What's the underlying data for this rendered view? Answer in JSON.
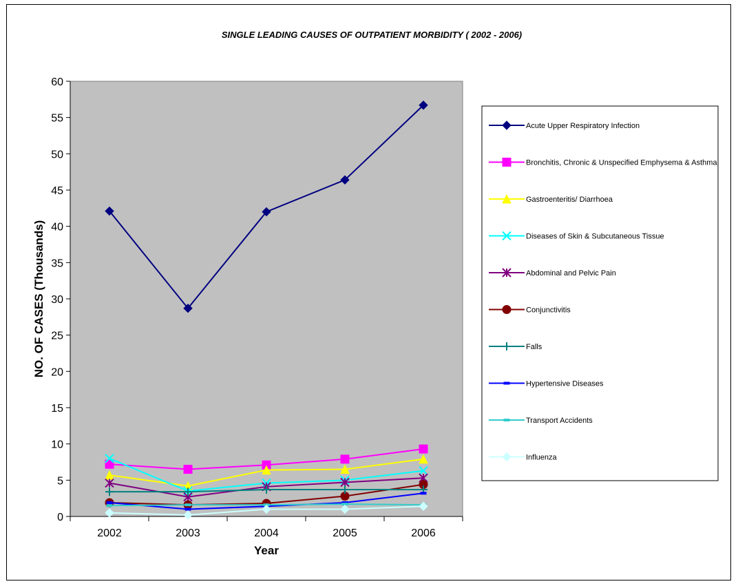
{
  "chart_data": {
    "type": "line",
    "title": "SINGLE LEADING CAUSES OF OUTPATIENT MORBIDITY ( 2002 - 2006)",
    "xlabel": "Year",
    "ylabel": "NO. OF CASES (Thousands)",
    "categories": [
      "2002",
      "2003",
      "2004",
      "2005",
      "2006"
    ],
    "ylim": [
      0,
      60
    ],
    "yticks": [
      0,
      5,
      10,
      15,
      20,
      25,
      30,
      35,
      40,
      45,
      50,
      55,
      60
    ],
    "grid": false,
    "plot_background": "#C0C0C0",
    "legend_position": "right",
    "series": [
      {
        "name": "Acute Upper Respiratory Infection",
        "color": "#000080",
        "marker": "diamond",
        "values": [
          42.1,
          28.7,
          42.0,
          46.4,
          56.7
        ]
      },
      {
        "name": "Bronchitis, Chronic & Unspecified Emphysema & Asthma",
        "color": "#FF00FF",
        "marker": "square",
        "values": [
          7.2,
          6.5,
          7.1,
          7.9,
          9.3
        ]
      },
      {
        "name": "Gastroenteritis/ Diarrhoea",
        "color": "#FFFF00",
        "marker": "triangle",
        "values": [
          5.7,
          4.2,
          6.4,
          6.5,
          7.9
        ]
      },
      {
        "name": "Diseases of Skin & Subcutaneous Tissue",
        "color": "#00FFFF",
        "marker": "x",
        "values": [
          8.0,
          3.5,
          4.6,
          5.0,
          6.3
        ]
      },
      {
        "name": "Abdominal and Pelvic Pain",
        "color": "#800080",
        "marker": "star",
        "values": [
          4.6,
          2.7,
          4.1,
          4.7,
          5.3
        ]
      },
      {
        "name": "Conjunctivitis",
        "color": "#800000",
        "marker": "circle",
        "values": [
          1.9,
          1.6,
          1.8,
          2.8,
          4.4
        ]
      },
      {
        "name": "Falls",
        "color": "#008080",
        "marker": "plus",
        "values": [
          3.4,
          3.4,
          3.7,
          3.7,
          3.7
        ]
      },
      {
        "name": "Hypertensive Diseases",
        "color": "#0000FF",
        "marker": "dash",
        "values": [
          1.9,
          1.0,
          1.4,
          1.9,
          3.2
        ]
      },
      {
        "name": "Transport Accidents",
        "color": "#33CCCC",
        "marker": "dash",
        "values": [
          1.5,
          1.6,
          1.6,
          1.7,
          1.6
        ]
      },
      {
        "name": "Influenza",
        "color": "#CCFFFF",
        "marker": "diamond",
        "values": [
          0.5,
          0.2,
          1.0,
          1.0,
          1.4
        ]
      }
    ]
  }
}
